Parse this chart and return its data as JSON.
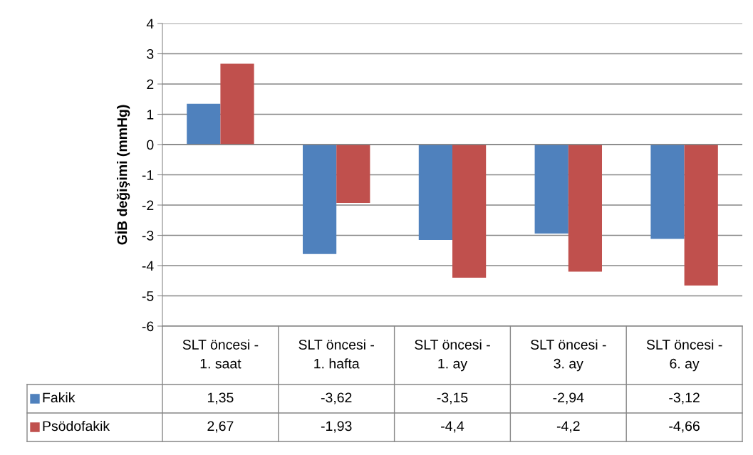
{
  "chart_data": {
    "type": "bar",
    "ylabel": "GİB değişimi (mmHg)",
    "categories": [
      "SLT öncesi -\n1. saat",
      "SLT öncesi -\n1. hafta",
      "SLT öncesi -\n1. ay",
      "SLT öncesi -\n3. ay",
      "SLT öncesi -\n6. ay"
    ],
    "series": [
      {
        "name": "Fakik",
        "color": "#4f81bd",
        "values": [
          1.35,
          -3.62,
          -3.15,
          -2.94,
          -3.12
        ],
        "value_labels": [
          "1,35",
          "-3,62",
          "-3,15",
          "-2,94",
          "-3,12"
        ]
      },
      {
        "name": "Psödofakik",
        "color": "#c0504d",
        "values": [
          2.67,
          -1.93,
          -4.4,
          -4.2,
          -4.66
        ],
        "value_labels": [
          "2,67",
          "-1,93",
          "-4,4",
          "-4,2",
          "-4,66"
        ]
      }
    ],
    "ylim": [
      -6,
      4
    ],
    "yticks": [
      -6,
      -5,
      -4,
      -3,
      -2,
      -1,
      0,
      1,
      2,
      3,
      4
    ],
    "grid": "y",
    "legend": "bottom"
  }
}
